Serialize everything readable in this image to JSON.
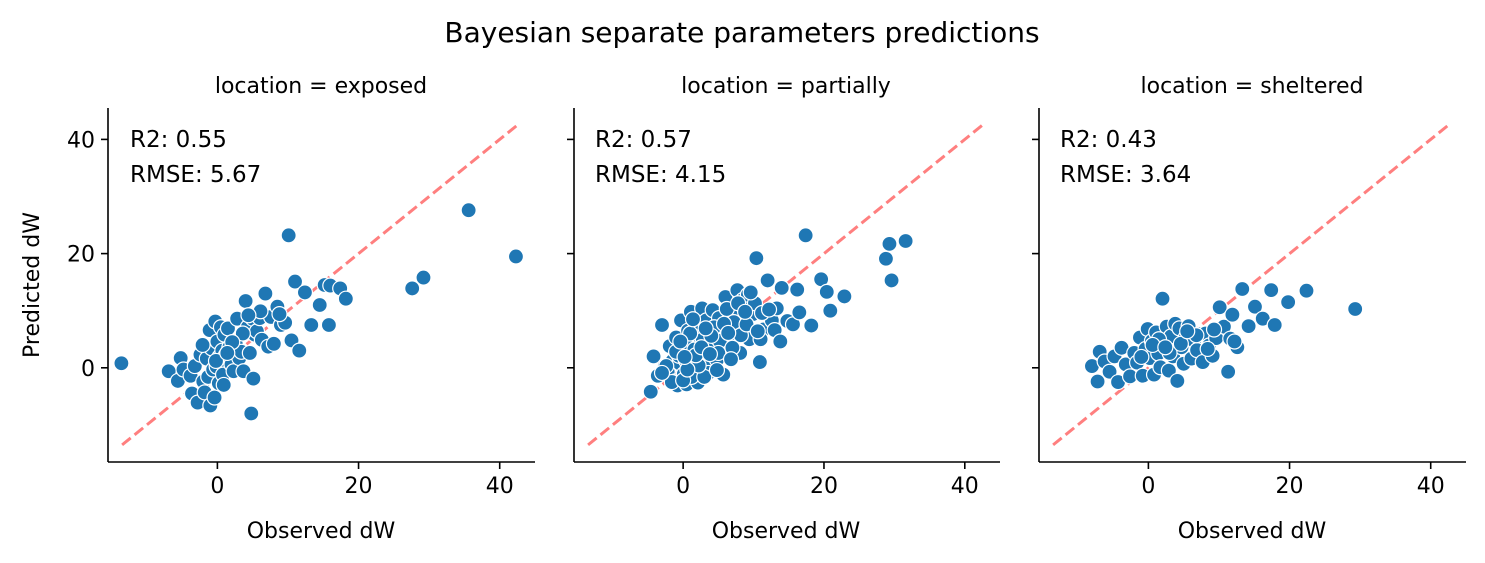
{
  "figure_title": "Bayesian separate parameters predictions",
  "colors": {
    "point": "#1f77b4",
    "reference_line": "#ff7f7f",
    "axis": "#000000"
  },
  "chart_data": [
    {
      "type": "scatter",
      "title": "location = exposed",
      "xlabel": "Observed dW",
      "ylabel": "Predicted dW",
      "xlim": [
        -15.5,
        45
      ],
      "ylim": [
        -16.5,
        45.5
      ],
      "xticks": [
        0,
        20,
        40
      ],
      "yticks": [
        0,
        20,
        40
      ],
      "reference_line": {
        "style": "dashed",
        "from": [
          -13.5,
          -13.5
        ],
        "to": [
          42.5,
          42.5
        ]
      },
      "annotation_lines": [
        "R2: 0.55",
        "RMSE: 5.67"
      ],
      "x": [
        -13.6,
        -6.9,
        -5.6,
        -5.2,
        -4.8,
        -3.8,
        -3.6,
        -3.2,
        -2.8,
        -2.4,
        -2.0,
        -1.8,
        -1.5,
        -1.3,
        -1.1,
        -1.0,
        -0.8,
        -0.6,
        -0.4,
        -0.3,
        -0.1,
        0.0,
        0.2,
        0.3,
        0.5,
        0.7,
        0.8,
        1.0,
        1.2,
        1.5,
        1.7,
        2.0,
        2.3,
        2.6,
        2.8,
        3.1,
        3.4,
        3.7,
        4.0,
        4.3,
        4.6,
        4.8,
        5.0,
        5.1,
        5.3,
        5.6,
        6.0,
        6.3,
        6.8,
        7.2,
        7.6,
        8.0,
        8.5,
        9.0,
        9.6,
        10.1,
        10.5,
        11.0,
        11.6,
        12.4,
        13.3,
        14.5,
        15.2,
        15.8,
        16.0,
        17.4,
        18.2,
        27.6,
        29.2,
        35.6,
        42.3,
        3.6,
        2.1,
        -0.2,
        6.1,
        8.8,
        -2.1,
        1.4,
        4.4,
        0.9
      ],
      "y": [
        0.8,
        -0.6,
        -2.3,
        1.7,
        -0.3,
        -1.4,
        -4.5,
        0.3,
        -6.1,
        2.3,
        -2.4,
        -4.3,
        1.6,
        -1.6,
        6.6,
        -6.6,
        3.4,
        -0.3,
        -5.2,
        8.1,
        0.2,
        4.6,
        -2.7,
        1.9,
        7.1,
        3.0,
        -1.2,
        5.8,
        2.2,
        6.9,
        3.6,
        0.6,
        -0.6,
        4.2,
        8.6,
        1.7,
        2.8,
        -0.6,
        11.7,
        7.1,
        2.6,
        -8.0,
        8.6,
        -1.9,
        5.8,
        6.4,
        8.7,
        4.9,
        13.0,
        3.7,
        8.9,
        4.2,
        10.7,
        7.5,
        7.9,
        23.2,
        4.8,
        15.1,
        3.0,
        13.2,
        7.5,
        11.0,
        14.5,
        7.5,
        14.4,
        13.9,
        12.1,
        13.9,
        15.8,
        27.6,
        19.5,
        6.0,
        4.5,
        1.2,
        9.9,
        9.4,
        4.0,
        2.6,
        9.2,
        -3.0
      ]
    },
    {
      "type": "scatter",
      "title": "location = partially",
      "xlabel": "Observed dW",
      "ylabel": "",
      "xlim": [
        -15.5,
        45
      ],
      "ylim": [
        -16.5,
        45.5
      ],
      "xticks": [
        0,
        20,
        40
      ],
      "yticks": [
        0,
        20,
        40
      ],
      "reference_line": {
        "style": "dashed",
        "from": [
          -13.5,
          -13.5
        ],
        "to": [
          42.5,
          42.5
        ]
      },
      "annotation_lines": [
        "R2: 0.57",
        "RMSE: 4.15"
      ],
      "x": [
        -4.6,
        -4.2,
        -3.6,
        -3.0,
        -2.6,
        -2.2,
        -1.9,
        -1.5,
        -1.2,
        -1.0,
        -0.8,
        -0.5,
        -0.3,
        -0.1,
        0.1,
        0.3,
        0.5,
        0.7,
        0.9,
        1.1,
        1.3,
        1.6,
        1.9,
        2.1,
        2.4,
        2.7,
        3.0,
        3.3,
        3.6,
        3.9,
        4.2,
        4.5,
        4.8,
        5.1,
        5.4,
        5.7,
        6.0,
        6.3,
        6.6,
        7.0,
        7.3,
        7.7,
        8.1,
        8.5,
        9.0,
        9.4,
        9.9,
        10.4,
        10.9,
        11.4,
        12.0,
        12.6,
        13.3,
        14.0,
        14.8,
        15.6,
        16.5,
        17.4,
        18.2,
        19.6,
        20.4,
        20.9,
        22.9,
        28.8,
        29.3,
        29.6,
        31.6,
        -2.4,
        -1.6,
        -0.6,
        0.4,
        1.2,
        2.0,
        2.8,
        3.6,
        4.4,
        5.2,
        6.2,
        7.2,
        8.2,
        9.2,
        10.2,
        11.2,
        12.2,
        -3.0,
        -1.0,
        0.0,
        1.0,
        3.0,
        5.0,
        7.0,
        9.0,
        11.0,
        13.0,
        2.2,
        4.0,
        6.8,
        0.6,
        -0.4,
        1.8,
        3.2,
        5.8,
        7.8,
        10.6,
        13.8,
        16.2,
        2.6,
        4.8,
        8.8,
        0.2,
        1.4,
        3.8,
        6.4,
        9.6
      ],
      "y": [
        -4.2,
        2.0,
        -1.4,
        7.5,
        0.3,
        -0.7,
        3.8,
        1.2,
        -2.4,
        5.3,
        -3.1,
        0.8,
        8.3,
        2.6,
        -1.1,
        4.1,
        -2.9,
        6.5,
        1.6,
        9.8,
        -0.5,
        3.2,
        7.0,
        -2.6,
        5.4,
        10.4,
        1.0,
        8.3,
        -0.9,
        4.3,
        10.1,
        6.1,
        1.4,
        8.7,
        3.7,
        -1.2,
        12.4,
        6.0,
        4.0,
        9.0,
        7.2,
        13.6,
        2.6,
        11.9,
        7.4,
        5.0,
        9.4,
        19.2,
        1.0,
        6.7,
        15.3,
        8.3,
        10.4,
        14.0,
        8.2,
        7.6,
        9.7,
        23.2,
        7.4,
        15.5,
        13.3,
        10.0,
        12.5,
        19.1,
        21.7,
        15.3,
        22.2,
        0.3,
        -2.5,
        2.1,
        1.3,
        -1.6,
        0.8,
        5.0,
        3.1,
        7.1,
        4.7,
        10.3,
        8.0,
        5.7,
        12.8,
        11.3,
        9.6,
        10.2,
        -0.9,
        2.8,
        -2.2,
        6.0,
        -1.6,
        2.6,
        3.5,
        7.6,
        5.0,
        6.6,
        0.4,
        5.6,
        1.5,
        -0.3,
        4.6,
        2.2,
        6.9,
        7.7,
        11.3,
        6.4,
        4.6,
        13.7,
        3.6,
        -0.4,
        9.8,
        1.9,
        8.5,
        2.4,
        6.1,
        13.2
      ]
    },
    {
      "type": "scatter",
      "title": "location = sheltered",
      "xlabel": "Observed dW",
      "ylabel": "",
      "xlim": [
        -15.5,
        45
      ],
      "ylim": [
        -16.5,
        45.5
      ],
      "xticks": [
        0,
        20,
        40
      ],
      "yticks": [
        0,
        20,
        40
      ],
      "reference_line": {
        "style": "dashed",
        "from": [
          -13.5,
          -13.5
        ],
        "to": [
          42.5,
          42.5
        ]
      },
      "annotation_lines": [
        "R2: 0.43",
        "RMSE: 3.64"
      ],
      "x": [
        -8.0,
        -7.2,
        -6.9,
        -6.2,
        -5.5,
        -4.8,
        -4.3,
        -3.8,
        -3.2,
        -2.6,
        -2.0,
        -1.6,
        -1.2,
        -0.8,
        -0.4,
        -0.1,
        0.2,
        0.5,
        0.8,
        1.1,
        1.4,
        1.7,
        2.0,
        2.3,
        2.6,
        2.9,
        3.2,
        3.5,
        3.8,
        4.1,
        4.4,
        4.7,
        5.0,
        5.3,
        5.7,
        6.1,
        6.5,
        6.9,
        7.3,
        7.7,
        8.1,
        8.6,
        9.1,
        9.6,
        10.1,
        10.7,
        11.3,
        11.9,
        12.6,
        13.3,
        14.2,
        15.1,
        16.2,
        17.4,
        17.9,
        19.8,
        22.4,
        29.3,
        1.5,
        3.0,
        4.6,
        6.8,
        9.3,
        11.6,
        -1.0,
        0.6,
        2.4,
        5.5,
        8.4,
        12.2
      ],
      "y": [
        0.3,
        -2.4,
        2.8,
        1.1,
        -0.7,
        2.0,
        -2.5,
        3.5,
        0.6,
        -1.5,
        2.6,
        0.9,
        5.3,
        -1.4,
        3.3,
        6.8,
        1.7,
        4.7,
        -1.2,
        6.2,
        2.5,
        0.1,
        12.1,
        4.3,
        7.2,
        -0.5,
        5.5,
        2.0,
        7.7,
        -2.3,
        6.9,
        3.6,
        0.7,
        5.3,
        7.3,
        1.6,
        4.7,
        3.1,
        5.9,
        1.0,
        6.0,
        3.9,
        2.1,
        5.2,
        10.6,
        7.2,
        -0.7,
        9.3,
        3.6,
        13.8,
        7.3,
        10.7,
        8.6,
        13.6,
        7.5,
        11.5,
        13.5,
        10.3,
        5.0,
        2.6,
        4.2,
        5.7,
        6.7,
        5.1,
        1.9,
        4.0,
        3.6,
        6.4,
        3.3,
        4.6
      ]
    }
  ]
}
